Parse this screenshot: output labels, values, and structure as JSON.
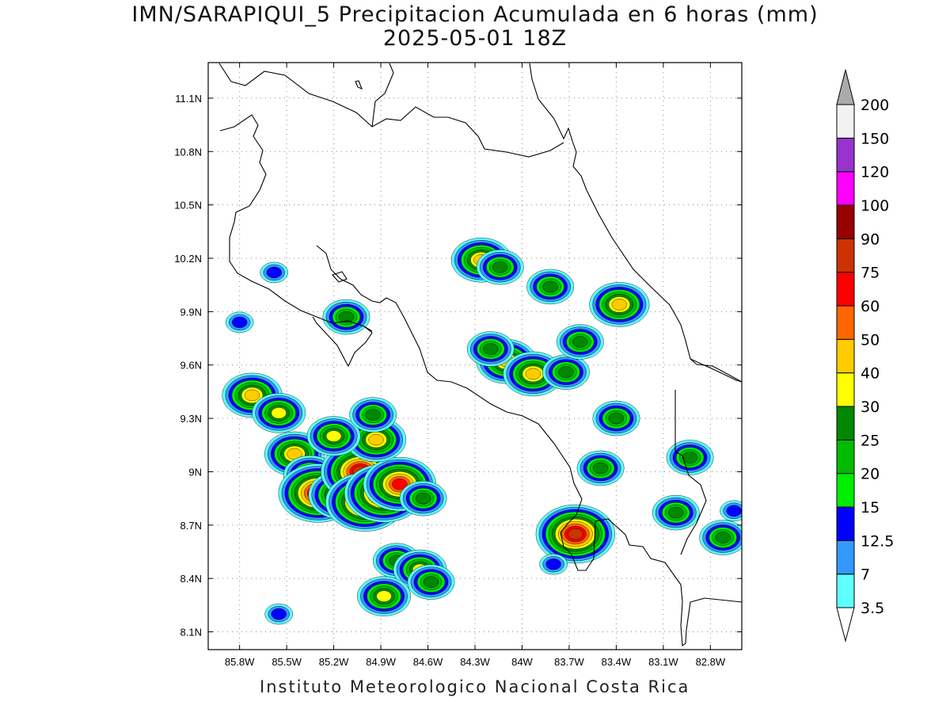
{
  "title": {
    "line1": "IMN/SARAPIQUI_5 Precipitacion Acumulada en 6 horas (mm)",
    "line2": "2025-05-01 18Z"
  },
  "footer": "Instituto Meteorologico Nacional Costa Rica",
  "map": {
    "lon_range": [
      -86.0,
      -82.6
    ],
    "lat_range": [
      8.0,
      11.3
    ],
    "lon_ticks": [
      {
        "value": -85.8,
        "label": "85.8W"
      },
      {
        "value": -85.5,
        "label": "85.5W"
      },
      {
        "value": -85.2,
        "label": "85.2W"
      },
      {
        "value": -84.9,
        "label": "84.9W"
      },
      {
        "value": -84.6,
        "label": "84.6W"
      },
      {
        "value": -84.3,
        "label": "84.3W"
      },
      {
        "value": -84.0,
        "label": "84W"
      },
      {
        "value": -83.7,
        "label": "83.7W"
      },
      {
        "value": -83.4,
        "label": "83.4W"
      },
      {
        "value": -83.1,
        "label": "83.1W"
      },
      {
        "value": -82.8,
        "label": "82.8W"
      }
    ],
    "lat_ticks": [
      {
        "value": 11.1,
        "label": "11.1N"
      },
      {
        "value": 10.8,
        "label": "10.8N"
      },
      {
        "value": 10.5,
        "label": "10.5N"
      },
      {
        "value": 10.2,
        "label": "10.2N"
      },
      {
        "value": 9.9,
        "label": "9.9N"
      },
      {
        "value": 9.6,
        "label": "9.6N"
      },
      {
        "value": 9.3,
        "label": "9.3N"
      },
      {
        "value": 9.0,
        "label": "9N"
      },
      {
        "value": 8.7,
        "label": "8.7N"
      },
      {
        "value": 8.4,
        "label": "8.4N"
      },
      {
        "value": 8.1,
        "label": "8.1N"
      }
    ],
    "grid": true
  },
  "colorbar": {
    "levels": [
      "3.5",
      "7",
      "12.5",
      "15",
      "20",
      "25",
      "30",
      "40",
      "50",
      "60",
      "75",
      "90",
      "100",
      "120",
      "150",
      "200"
    ],
    "colors": [
      "#5effff",
      "#3399ff",
      "#0000ff",
      "#00ee00",
      "#00bb00",
      "#008800",
      "#ffff00",
      "#ffcc00",
      "#ff6600",
      "#ff0000",
      "#cc3300",
      "#990000",
      "#ff00ff",
      "#9933cc",
      "#f2f2f2",
      "#aaaaaa"
    ],
    "below_color": "#ffffff"
  },
  "precip_cells": [
    {
      "lon": -85.72,
      "lat": 9.43,
      "value": 40
    },
    {
      "lon": -85.55,
      "lat": 9.33,
      "value": 30
    },
    {
      "lon": -85.45,
      "lat": 9.1,
      "value": 40
    },
    {
      "lon": -85.35,
      "lat": 8.98,
      "value": 30
    },
    {
      "lon": -85.3,
      "lat": 8.88,
      "value": 75
    },
    {
      "lon": -85.15,
      "lat": 8.87,
      "value": 50
    },
    {
      "lon": -85.03,
      "lat": 9.0,
      "value": 75
    },
    {
      "lon": -85.0,
      "lat": 8.83,
      "value": 75
    },
    {
      "lon": -84.88,
      "lat": 8.88,
      "value": 75
    },
    {
      "lon": -84.78,
      "lat": 8.93,
      "value": 60
    },
    {
      "lon": -84.93,
      "lat": 9.18,
      "value": 40
    },
    {
      "lon": -85.2,
      "lat": 9.2,
      "value": 30
    },
    {
      "lon": -84.95,
      "lat": 9.32,
      "value": 25
    },
    {
      "lon": -84.63,
      "lat": 8.85,
      "value": 25
    },
    {
      "lon": -84.8,
      "lat": 8.5,
      "value": 25
    },
    {
      "lon": -84.65,
      "lat": 8.45,
      "value": 30
    },
    {
      "lon": -84.58,
      "lat": 8.38,
      "value": 25
    },
    {
      "lon": -84.88,
      "lat": 8.3,
      "value": 30
    },
    {
      "lon": -85.55,
      "lat": 8.2,
      "value": 12.5
    },
    {
      "lon": -84.26,
      "lat": 10.19,
      "value": 40
    },
    {
      "lon": -84.14,
      "lat": 10.15,
      "value": 25
    },
    {
      "lon": -83.82,
      "lat": 10.04,
      "value": 25
    },
    {
      "lon": -83.38,
      "lat": 9.94,
      "value": 40
    },
    {
      "lon": -84.1,
      "lat": 9.62,
      "value": 40
    },
    {
      "lon": -83.93,
      "lat": 9.55,
      "value": 40
    },
    {
      "lon": -83.72,
      "lat": 9.56,
      "value": 25
    },
    {
      "lon": -83.63,
      "lat": 9.73,
      "value": 25
    },
    {
      "lon": -84.2,
      "lat": 9.69,
      "value": 25
    },
    {
      "lon": -83.4,
      "lat": 9.3,
      "value": 25
    },
    {
      "lon": -83.5,
      "lat": 9.02,
      "value": 25
    },
    {
      "lon": -83.66,
      "lat": 8.65,
      "value": 75
    },
    {
      "lon": -83.02,
      "lat": 8.77,
      "value": 25
    },
    {
      "lon": -82.93,
      "lat": 9.08,
      "value": 25
    },
    {
      "lon": -82.72,
      "lat": 8.63,
      "value": 25
    },
    {
      "lon": -82.65,
      "lat": 8.78,
      "value": 12.5
    },
    {
      "lon": -85.8,
      "lat": 9.84,
      "value": 12.5
    },
    {
      "lon": -85.58,
      "lat": 10.12,
      "value": 12.5
    },
    {
      "lon": -85.12,
      "lat": 9.87,
      "value": 25
    },
    {
      "lon": -83.8,
      "lat": 8.48,
      "value": 12.5
    }
  ]
}
